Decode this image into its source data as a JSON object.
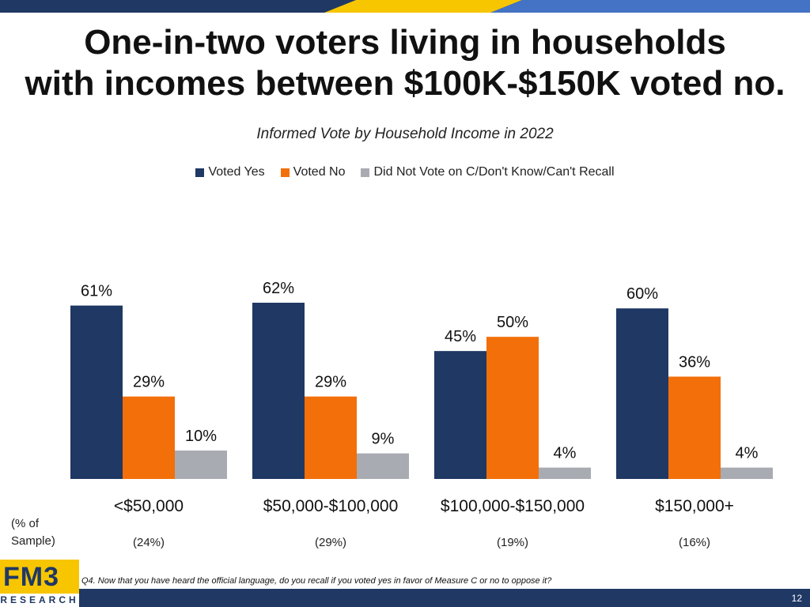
{
  "header": {
    "title_line1": "One-in-two voters living in households",
    "title_line2": "with incomes between $100K-$150K voted no.",
    "subtitle": "Informed Vote by Household Income in 2022"
  },
  "colors": {
    "voted_yes": "#1f3864",
    "voted_no": "#f26f0a",
    "did_not_vote": "#a9abb3",
    "brand_yellow": "#f7c600",
    "brand_navy": "#1f3864"
  },
  "chart_data": {
    "type": "bar",
    "title": "Informed Vote by Household Income in 2022",
    "categories": [
      "<$50,000",
      "$50,000-$100,000",
      "$100,000-$150,000",
      "$150,000+"
    ],
    "category_notes": [
      "(24%)",
      "(29%)",
      "(19%)",
      "(16%)"
    ],
    "series": [
      {
        "name": "Voted Yes",
        "values": [
          61,
          62,
          45,
          60
        ],
        "labels": [
          "61%",
          "62%",
          "45%",
          "60%"
        ]
      },
      {
        "name": "Voted No",
        "values": [
          29,
          29,
          50,
          36
        ],
        "labels": [
          "29%",
          "29%",
          "50%",
          "36%"
        ]
      },
      {
        "name": "Did Not Vote on C/Don't Know/Can't Recall",
        "values": [
          10,
          9,
          4,
          4
        ],
        "labels": [
          "10%",
          "9%",
          "4%",
          "4%"
        ]
      }
    ],
    "ylim": [
      0,
      62
    ],
    "grid": false,
    "legend_position": "top"
  },
  "sample_label": {
    "line1": "(% of",
    "line2": "Sample)"
  },
  "footnote": "Q4. Now that you have heard the official language, do you recall if you voted yes in favor of Measure C or no to oppose it?",
  "page_number": "12",
  "logo": {
    "mark": "FM3",
    "sub": "RESEARCH"
  }
}
